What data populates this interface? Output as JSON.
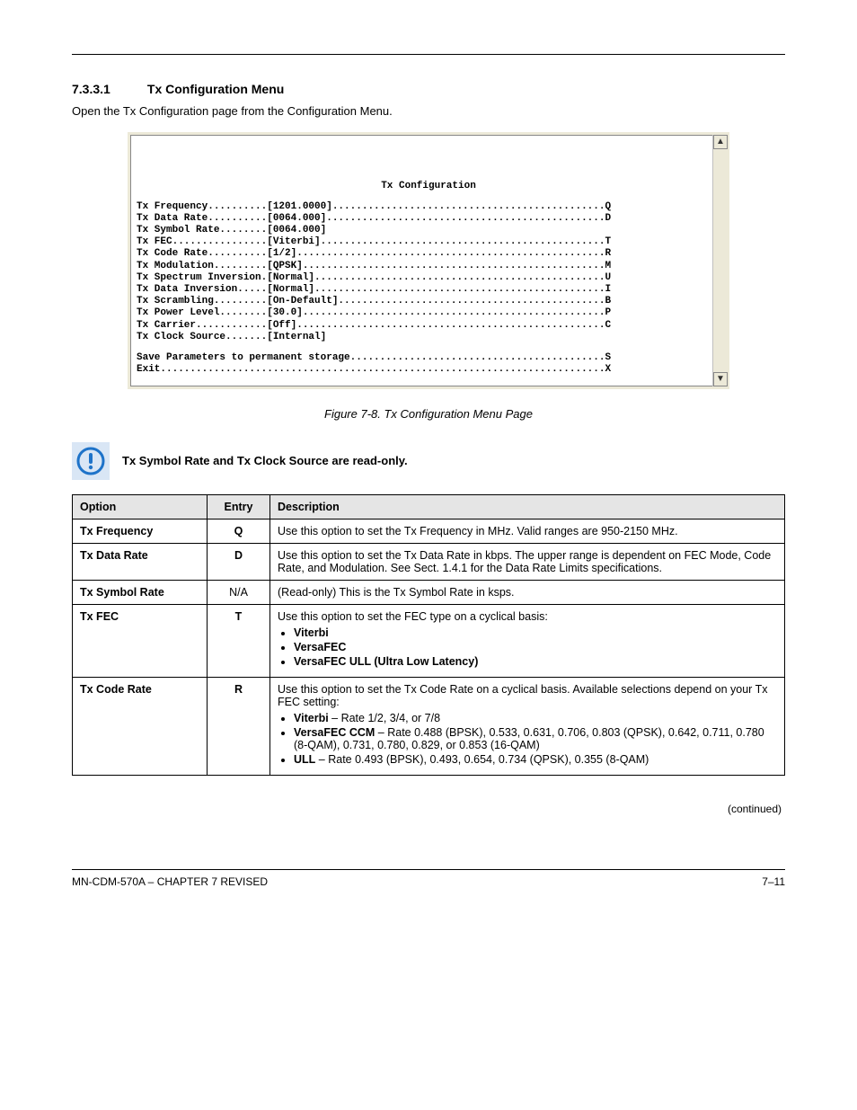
{
  "section": {
    "number": "7.3.3.1",
    "title": "Tx Configuration Menu",
    "intro": "Open the Tx Configuration page from the Configuration Menu."
  },
  "terminal": {
    "bg": "#ffffff",
    "frame_bg": "#ece9d8",
    "font": "Courier New",
    "title": "Tx Configuration",
    "lines": [
      {
        "label": "Tx Frequency",
        "value": "[1201.0000]",
        "key": "Q"
      },
      {
        "label": "Tx Data Rate",
        "value": "[0064.000]",
        "key": "D"
      },
      {
        "label": "Tx Symbol Rate",
        "value": "[0064.000]",
        "key": ""
      },
      {
        "label": "Tx FEC",
        "value": "[Viterbi]",
        "key": "T"
      },
      {
        "label": "Tx Code Rate",
        "value": "[1/2]",
        "key": "R"
      },
      {
        "label": "Tx Modulation",
        "value": "[QPSK]",
        "key": "M"
      },
      {
        "label": "Tx Spectrum Inversion",
        "value": "[Normal]",
        "key": "U"
      },
      {
        "label": "Tx Data Inversion",
        "value": "[Normal]",
        "key": "I"
      },
      {
        "label": "Tx Scrambling",
        "value": "[On-Default]",
        "key": "B"
      },
      {
        "label": "Tx Power Level",
        "value": "[30.0]",
        "key": "P"
      },
      {
        "label": "Tx Carrier",
        "value": "[Off]",
        "key": "C"
      },
      {
        "label": "Tx Clock Source",
        "value": "[Internal]",
        "key": ""
      }
    ],
    "footer_lines": [
      {
        "label": "Save Parameters to permanent storage",
        "key": "S"
      },
      {
        "label": "Exit",
        "key": "X"
      }
    ],
    "label_col_width": 22,
    "total_width": 80
  },
  "figure": {
    "caption": "Figure 7-8. Tx Configuration Menu Page"
  },
  "note": {
    "icon_color": "#1e73c9",
    "text": "Tx Symbol Rate and Tx Clock Source are read-only."
  },
  "table": {
    "headers": {
      "opt": "Option",
      "entry": "Entry",
      "desc": "Description"
    },
    "rows": [
      {
        "opt": "Tx Frequency",
        "entry": "Q",
        "desc": "Use this option to set the Tx Frequency in MHz. Valid ranges are 950-2150 MHz."
      },
      {
        "opt": "Tx Data Rate",
        "entry": "D",
        "desc": "Use this option to set the Tx Data Rate in kbps. The upper range is dependent on FEC Mode, Code Rate, and Modulation. See Sect. 1.4.1 for the Data Rate Limits specifications."
      },
      {
        "opt": "Tx Symbol Rate",
        "entry": "N/A",
        "desc": "(Read-only) This is the Tx Symbol Rate in ksps.",
        "entry_bold": false
      },
      {
        "opt": "Tx FEC",
        "entry": "T",
        "desc_html": "Use this option to set the FEC type on a cyclical basis:<ul class='tight'><li><b>Viterbi</b></li><li><b>VersaFEC</b></li><li><b>VersaFEC ULL (Ultra Low Latency)</b></li></ul>"
      },
      {
        "opt": "Tx Code Rate",
        "entry": "R",
        "desc_html": "Use this option to set the Tx Code Rate on a cyclical basis. Available selections depend on your Tx FEC setting:<ul class='tight'><li><b>Viterbi</b> – Rate 1/2, 3/4, or 7/8</li><li><b>VersaFEC CCM</b> – Rate 0.488 (BPSK), 0.533, 0.631, 0.706, 0.803 (QPSK), 0.642, 0.711, 0.780 (8-QAM), 0.731, 0.780, 0.829, or 0.853 (16-QAM)</li><li><b>ULL</b> – Rate 0.493 (BPSK), 0.493, 0.654, 0.734 (QPSK), 0.355 (8-QAM)</li></ul>"
      }
    ],
    "continued": "(continued)"
  },
  "footer": {
    "left": "MN-CDM-570A – CHAPTER 7 REVISED",
    "right": "7–11"
  }
}
